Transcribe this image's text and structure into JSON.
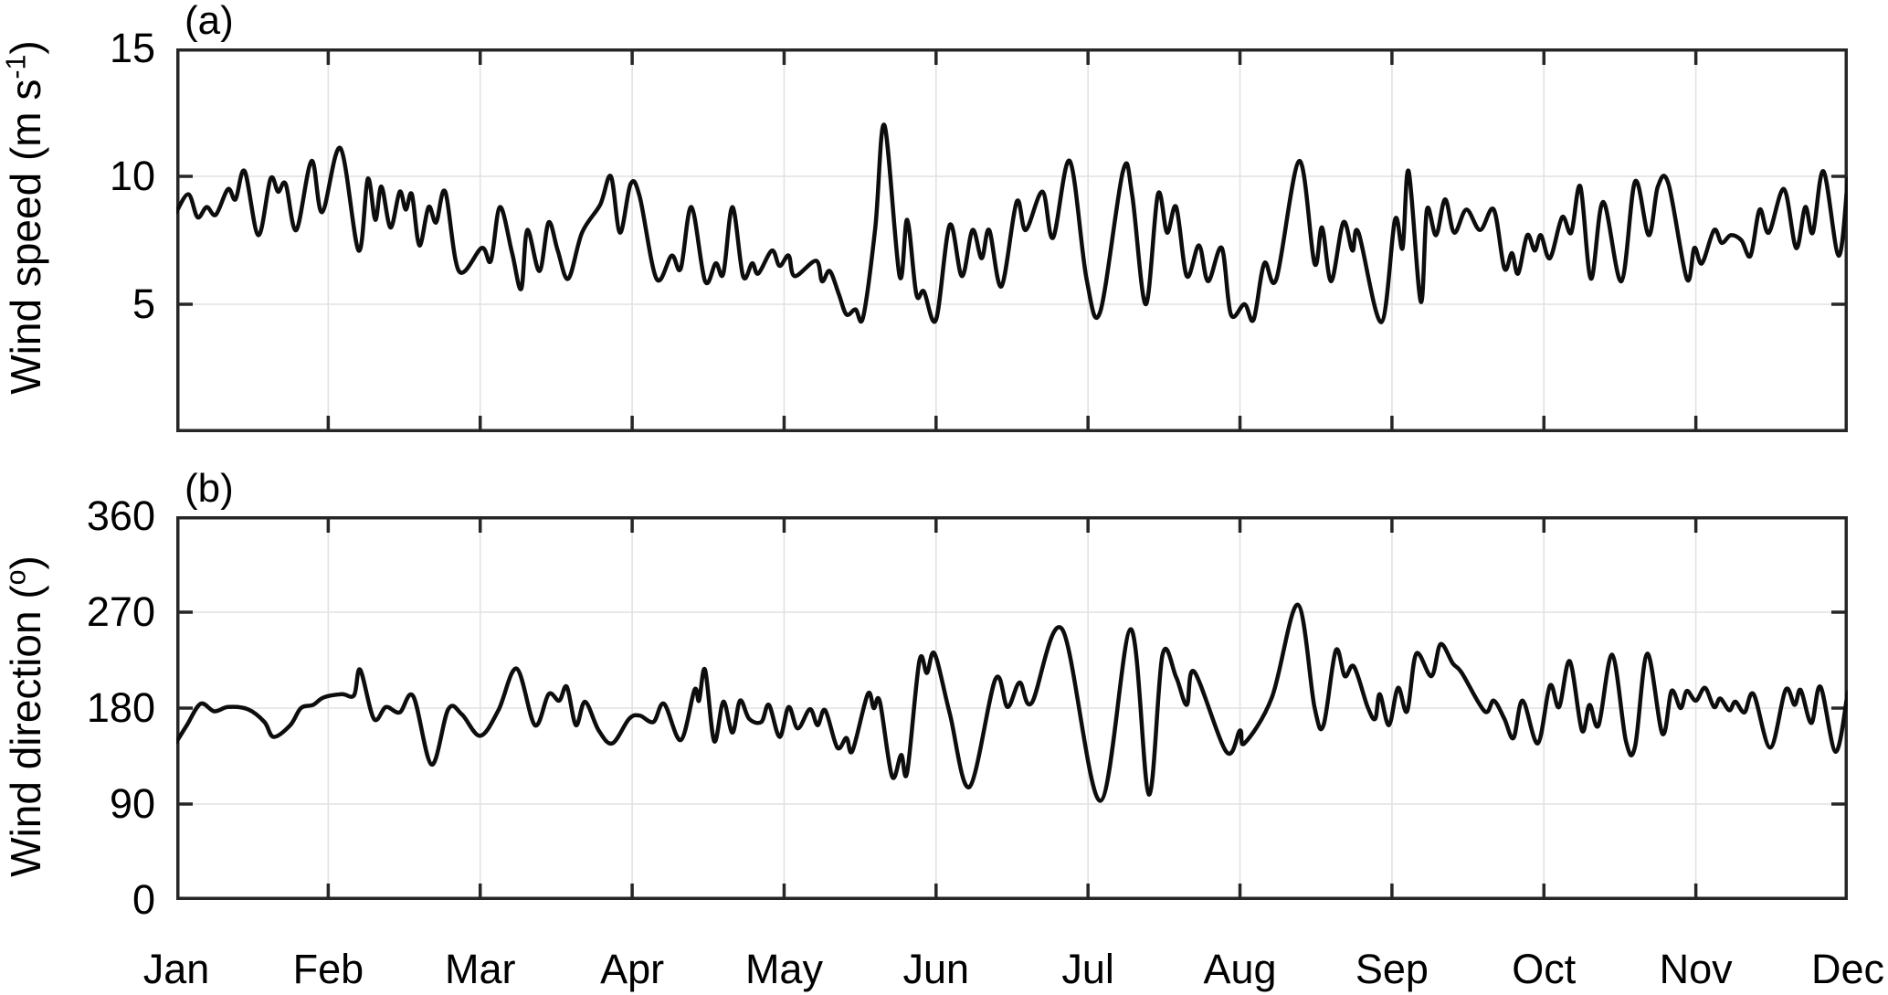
{
  "figure": {
    "panels": [
      {
        "id": "a",
        "corner_label": "(a)",
        "ylabel": {
          "pre": "Wind speed  (m s",
          "sup": "-1",
          "post": ")"
        },
        "yticks": [
          {
            "value": 15,
            "label": "15"
          },
          {
            "value": 10,
            "label": "10"
          },
          {
            "value": 5,
            "label": "5"
          }
        ],
        "grid_values": [
          10,
          5
        ]
      },
      {
        "id": "b",
        "corner_label": "(b)",
        "ylabel": {
          "pre": "Wind direction (",
          "sup": "o",
          "post": ")"
        },
        "yticks": [
          {
            "value": 360,
            "label": "360"
          },
          {
            "value": 270,
            "label": "270"
          },
          {
            "value": 180,
            "label": "180"
          },
          {
            "value": 90,
            "label": "90"
          },
          {
            "value": 0,
            "label": "0"
          }
        ],
        "grid_values": [
          270,
          180,
          90
        ]
      }
    ],
    "x_tick_labels": [
      "Jan",
      "Feb",
      "Mar",
      "Apr",
      "May",
      "Jun",
      "Jul",
      "Aug",
      "Sep",
      "Oct",
      "Nov",
      "Dec"
    ],
    "colors": {
      "line": "#0d0d0d",
      "axis": "#262626",
      "grid": "#e2e2e2",
      "text": "#000000",
      "background": "#ffffff"
    }
  },
  "chart_data": [
    {
      "type": "line",
      "panel": "(a)",
      "ylabel": "Wind speed (m s^-1)",
      "ylim": [
        0,
        15
      ],
      "yticks": [
        5,
        10,
        15
      ],
      "x_unit": "month, 0 = Jan 1 through 11 = Dec 1",
      "x_range": [
        0,
        11
      ],
      "xticklabels": [
        "Jan",
        "Feb",
        "Mar",
        "Apr",
        "May",
        "Jun",
        "Jul",
        "Aug",
        "Sep",
        "Oct",
        "Nov",
        "Dec"
      ],
      "grid": true,
      "legend": "none",
      "points": [
        [
          0.0,
          8.6
        ],
        [
          0.08,
          9.3
        ],
        [
          0.14,
          8.4
        ],
        [
          0.2,
          8.8
        ],
        [
          0.26,
          8.5
        ],
        [
          0.34,
          9.5
        ],
        [
          0.39,
          9.1
        ],
        [
          0.45,
          10.2
        ],
        [
          0.54,
          7.7
        ],
        [
          0.62,
          9.9
        ],
        [
          0.67,
          9.4
        ],
        [
          0.72,
          9.7
        ],
        [
          0.79,
          7.9
        ],
        [
          0.89,
          10.6
        ],
        [
          0.96,
          8.6
        ],
        [
          1.08,
          11.1
        ],
        [
          1.2,
          7.1
        ],
        [
          1.26,
          9.9
        ],
        [
          1.31,
          8.3
        ],
        [
          1.35,
          9.6
        ],
        [
          1.41,
          8.0
        ],
        [
          1.47,
          9.4
        ],
        [
          1.51,
          8.7
        ],
        [
          1.55,
          9.3
        ],
        [
          1.6,
          7.3
        ],
        [
          1.66,
          8.8
        ],
        [
          1.71,
          8.2
        ],
        [
          1.77,
          9.4
        ],
        [
          1.86,
          6.3
        ],
        [
          2.01,
          7.2
        ],
        [
          2.07,
          6.7
        ],
        [
          2.13,
          8.8
        ],
        [
          2.21,
          7.0
        ],
        [
          2.27,
          5.6
        ],
        [
          2.31,
          7.9
        ],
        [
          2.39,
          6.3
        ],
        [
          2.45,
          8.2
        ],
        [
          2.51,
          7.1
        ],
        [
          2.58,
          6.0
        ],
        [
          2.67,
          7.8
        ],
        [
          2.79,
          8.9
        ],
        [
          2.86,
          10.0
        ],
        [
          2.92,
          7.8
        ],
        [
          2.99,
          9.7
        ],
        [
          3.05,
          9.2
        ],
        [
          3.16,
          6.0
        ],
        [
          3.26,
          6.9
        ],
        [
          3.32,
          6.4
        ],
        [
          3.39,
          8.8
        ],
        [
          3.48,
          5.9
        ],
        [
          3.55,
          6.6
        ],
        [
          3.6,
          6.2
        ],
        [
          3.66,
          8.8
        ],
        [
          3.73,
          6.1
        ],
        [
          3.79,
          6.6
        ],
        [
          3.83,
          6.2
        ],
        [
          3.92,
          7.1
        ],
        [
          3.97,
          6.5
        ],
        [
          4.03,
          6.9
        ],
        [
          4.07,
          6.1
        ],
        [
          4.21,
          6.7
        ],
        [
          4.25,
          5.9
        ],
        [
          4.3,
          6.3
        ],
        [
          4.36,
          5.4
        ],
        [
          4.41,
          4.6
        ],
        [
          4.47,
          4.8
        ],
        [
          4.52,
          4.5
        ],
        [
          4.6,
          8.0
        ],
        [
          4.66,
          12.0
        ],
        [
          4.76,
          6.1
        ],
        [
          4.81,
          8.3
        ],
        [
          4.87,
          5.4
        ],
        [
          4.92,
          5.5
        ],
        [
          5.0,
          4.4
        ],
        [
          5.09,
          8.1
        ],
        [
          5.17,
          6.1
        ],
        [
          5.24,
          7.9
        ],
        [
          5.3,
          6.8
        ],
        [
          5.35,
          7.9
        ],
        [
          5.43,
          5.7
        ],
        [
          5.53,
          9.0
        ],
        [
          5.59,
          7.9
        ],
        [
          5.7,
          9.4
        ],
        [
          5.77,
          7.6
        ],
        [
          5.88,
          10.6
        ],
        [
          5.99,
          6.0
        ],
        [
          6.08,
          4.7
        ],
        [
          6.23,
          10.2
        ],
        [
          6.29,
          9.3
        ],
        [
          6.38,
          5.0
        ],
        [
          6.46,
          9.3
        ],
        [
          6.52,
          7.8
        ],
        [
          6.58,
          8.8
        ],
        [
          6.65,
          6.1
        ],
        [
          6.73,
          7.3
        ],
        [
          6.79,
          5.9
        ],
        [
          6.88,
          7.2
        ],
        [
          6.94,
          4.6
        ],
        [
          7.03,
          5.0
        ],
        [
          7.09,
          4.4
        ],
        [
          7.16,
          6.6
        ],
        [
          7.24,
          6.0
        ],
        [
          7.39,
          10.6
        ],
        [
          7.49,
          6.6
        ],
        [
          7.54,
          8.0
        ],
        [
          7.6,
          5.9
        ],
        [
          7.68,
          8.2
        ],
        [
          7.74,
          7.1
        ],
        [
          7.78,
          7.8
        ],
        [
          7.93,
          4.3
        ],
        [
          8.02,
          8.3
        ],
        [
          8.07,
          7.2
        ],
        [
          8.11,
          10.2
        ],
        [
          8.19,
          5.1
        ],
        [
          8.23,
          8.7
        ],
        [
          8.29,
          7.7
        ],
        [
          8.35,
          9.1
        ],
        [
          8.41,
          7.8
        ],
        [
          8.49,
          8.7
        ],
        [
          8.58,
          7.9
        ],
        [
          8.67,
          8.7
        ],
        [
          8.74,
          6.4
        ],
        [
          8.79,
          7.0
        ],
        [
          8.83,
          6.2
        ],
        [
          8.89,
          7.7
        ],
        [
          8.94,
          7.1
        ],
        [
          8.98,
          7.7
        ],
        [
          9.04,
          6.8
        ],
        [
          9.12,
          8.4
        ],
        [
          9.18,
          7.8
        ],
        [
          9.24,
          9.6
        ],
        [
          9.31,
          6.0
        ],
        [
          9.39,
          9.0
        ],
        [
          9.51,
          5.9
        ],
        [
          9.6,
          9.8
        ],
        [
          9.69,
          7.7
        ],
        [
          9.75,
          9.6
        ],
        [
          9.82,
          9.7
        ],
        [
          9.94,
          6.0
        ],
        [
          9.99,
          7.2
        ],
        [
          10.04,
          6.6
        ],
        [
          10.12,
          7.9
        ],
        [
          10.17,
          7.4
        ],
        [
          10.23,
          7.7
        ],
        [
          10.3,
          7.5
        ],
        [
          10.36,
          6.9
        ],
        [
          10.42,
          8.7
        ],
        [
          10.48,
          7.8
        ],
        [
          10.58,
          9.5
        ],
        [
          10.66,
          7.2
        ],
        [
          10.72,
          8.8
        ],
        [
          10.77,
          7.8
        ],
        [
          10.84,
          10.2
        ],
        [
          10.94,
          6.9
        ],
        [
          11.0,
          9.9
        ]
      ]
    },
    {
      "type": "line",
      "panel": "(b)",
      "ylabel": "Wind direction (deg)",
      "ylim": [
        0,
        360
      ],
      "yticks": [
        0,
        90,
        180,
        270,
        360
      ],
      "x_unit": "month, 0 = Jan 1 through 11 = Dec 1",
      "x_range": [
        0,
        11
      ],
      "xticklabels": [
        "Jan",
        "Feb",
        "Mar",
        "Apr",
        "May",
        "Jun",
        "Jul",
        "Aug",
        "Sep",
        "Oct",
        "Nov",
        "Dec"
      ],
      "grid": true,
      "legend": "none",
      "points": [
        [
          0.0,
          148
        ],
        [
          0.07,
          164
        ],
        [
          0.16,
          184
        ],
        [
          0.25,
          177
        ],
        [
          0.34,
          181
        ],
        [
          0.47,
          179
        ],
        [
          0.58,
          167
        ],
        [
          0.64,
          153
        ],
        [
          0.75,
          164
        ],
        [
          0.82,
          180
        ],
        [
          0.9,
          183
        ],
        [
          0.97,
          190
        ],
        [
          1.09,
          193
        ],
        [
          1.17,
          192
        ],
        [
          1.21,
          216
        ],
        [
          1.3,
          170
        ],
        [
          1.38,
          181
        ],
        [
          1.47,
          176
        ],
        [
          1.56,
          191
        ],
        [
          1.68,
          127
        ],
        [
          1.79,
          179
        ],
        [
          1.88,
          174
        ],
        [
          2.0,
          154
        ],
        [
          2.12,
          178
        ],
        [
          2.24,
          217
        ],
        [
          2.36,
          164
        ],
        [
          2.45,
          193
        ],
        [
          2.52,
          187
        ],
        [
          2.57,
          200
        ],
        [
          2.63,
          164
        ],
        [
          2.69,
          186
        ],
        [
          2.78,
          159
        ],
        [
          2.87,
          147
        ],
        [
          2.98,
          170
        ],
        [
          3.05,
          173
        ],
        [
          3.14,
          167
        ],
        [
          3.21,
          184
        ],
        [
          3.32,
          150
        ],
        [
          3.41,
          197
        ],
        [
          3.44,
          187
        ],
        [
          3.48,
          216
        ],
        [
          3.54,
          149
        ],
        [
          3.6,
          186
        ],
        [
          3.66,
          157
        ],
        [
          3.71,
          187
        ],
        [
          3.77,
          170
        ],
        [
          3.85,
          167
        ],
        [
          3.9,
          183
        ],
        [
          3.97,
          153
        ],
        [
          4.03,
          181
        ],
        [
          4.09,
          161
        ],
        [
          4.17,
          179
        ],
        [
          4.22,
          164
        ],
        [
          4.27,
          178
        ],
        [
          4.35,
          143
        ],
        [
          4.41,
          152
        ],
        [
          4.45,
          140
        ],
        [
          4.55,
          193
        ],
        [
          4.59,
          180
        ],
        [
          4.63,
          186
        ],
        [
          4.71,
          116
        ],
        [
          4.77,
          136
        ],
        [
          4.81,
          120
        ],
        [
          4.89,
          224
        ],
        [
          4.94,
          213
        ],
        [
          4.99,
          231
        ],
        [
          5.09,
          175
        ],
        [
          5.22,
          106
        ],
        [
          5.39,
          207
        ],
        [
          5.47,
          181
        ],
        [
          5.55,
          204
        ],
        [
          5.63,
          185
        ],
        [
          5.83,
          254
        ],
        [
          6.08,
          93
        ],
        [
          6.28,
          254
        ],
        [
          6.4,
          99
        ],
        [
          6.49,
          230
        ],
        [
          6.58,
          209
        ],
        [
          6.65,
          183
        ],
        [
          6.7,
          214
        ],
        [
          6.91,
          139
        ],
        [
          7.0,
          159
        ],
        [
          7.03,
          147
        ],
        [
          7.21,
          190
        ],
        [
          7.38,
          277
        ],
        [
          7.49,
          181
        ],
        [
          7.55,
          164
        ],
        [
          7.63,
          234
        ],
        [
          7.69,
          210
        ],
        [
          7.75,
          219
        ],
        [
          7.84,
          181
        ],
        [
          7.89,
          170
        ],
        [
          7.92,
          193
        ],
        [
          7.98,
          164
        ],
        [
          8.04,
          199
        ],
        [
          8.1,
          177
        ],
        [
          8.16,
          231
        ],
        [
          8.26,
          210
        ],
        [
          8.32,
          240
        ],
        [
          8.4,
          222
        ],
        [
          8.46,
          213
        ],
        [
          8.61,
          177
        ],
        [
          8.67,
          187
        ],
        [
          8.74,
          170
        ],
        [
          8.8,
          152
        ],
        [
          8.86,
          187
        ],
        [
          8.96,
          147
        ],
        [
          9.04,
          201
        ],
        [
          9.1,
          181
        ],
        [
          9.17,
          224
        ],
        [
          9.25,
          159
        ],
        [
          9.3,
          183
        ],
        [
          9.36,
          164
        ],
        [
          9.45,
          230
        ],
        [
          9.54,
          149
        ],
        [
          9.6,
          144
        ],
        [
          9.68,
          231
        ],
        [
          9.78,
          156
        ],
        [
          9.84,
          196
        ],
        [
          9.9,
          180
        ],
        [
          9.94,
          196
        ],
        [
          10.0,
          187
        ],
        [
          10.06,
          199
        ],
        [
          10.12,
          181
        ],
        [
          10.16,
          189
        ],
        [
          10.22,
          178
        ],
        [
          10.26,
          186
        ],
        [
          10.32,
          176
        ],
        [
          10.38,
          193
        ],
        [
          10.49,
          143
        ],
        [
          10.59,
          197
        ],
        [
          10.65,
          183
        ],
        [
          10.69,
          197
        ],
        [
          10.76,
          166
        ],
        [
          10.82,
          200
        ],
        [
          10.92,
          139
        ],
        [
          11.0,
          195
        ]
      ]
    }
  ]
}
